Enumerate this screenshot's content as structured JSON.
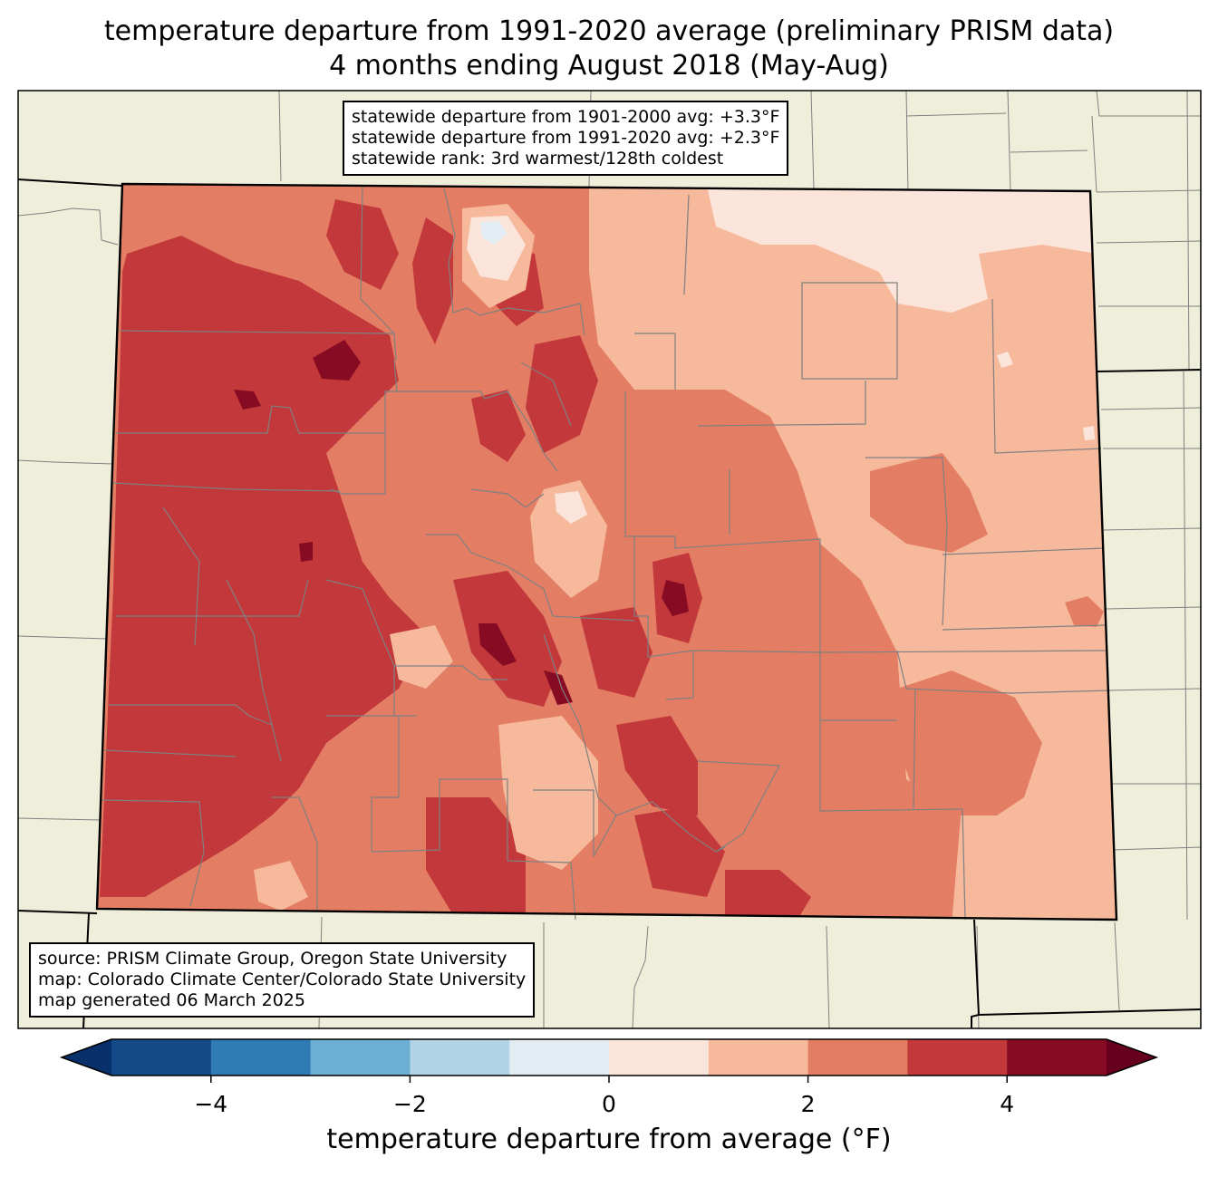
{
  "title": {
    "line1": "temperature departure from 1991-2020 average (preliminary PRISM data)",
    "line2": "4 months ending August 2018 (May-Aug)"
  },
  "stats_box": {
    "line1": "statewide departure from 1901-2000 avg: +3.3°F",
    "line2": "statewide departure from 1991-2020 avg: +2.3°F",
    "line3": "statewide rank: 3rd warmest/128th coldest"
  },
  "source_box": {
    "line1": "source: PRISM Climate Group, Oregon State University",
    "line2": "map: Colorado Climate Center/Colorado State University",
    "line3": "map generated 06 March 2025"
  },
  "colorbar": {
    "label": "temperature departure from average (°F)",
    "ticks": [
      "−4",
      "−2",
      "0",
      "2",
      "4"
    ],
    "tick_values": [
      -4,
      -2,
      0,
      2,
      4
    ],
    "range": [
      -5,
      5
    ],
    "bin_width": 1,
    "colors": [
      "#08306b",
      "#134a87",
      "#2f7bb6",
      "#6cafd4",
      "#b1d4e7",
      "#e3ecf3",
      "#fbe5da",
      "#f6b99c",
      "#e37e64",
      "#c3383a",
      "#870c23",
      "#67001f"
    ]
  },
  "map_colors": {
    "land": "#efeedb",
    "state_border": "#000000",
    "county_border": "#808080"
  }
}
